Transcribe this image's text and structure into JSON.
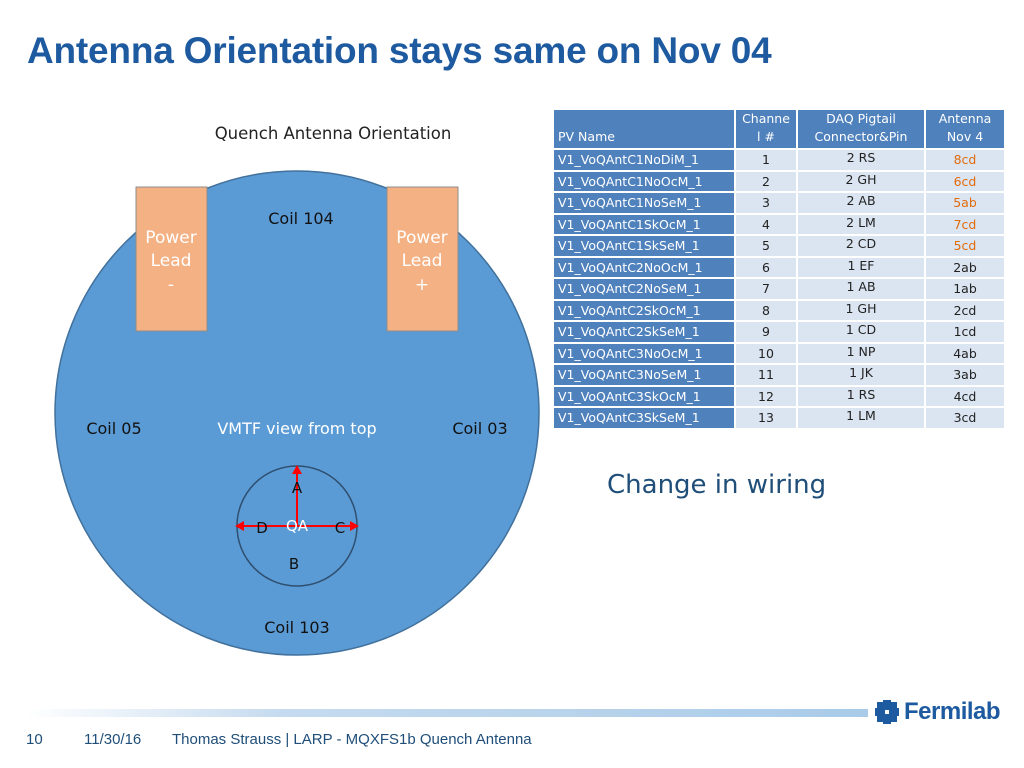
{
  "title": "Antenna Orientation stays same on Nov 04",
  "diagram": {
    "heading": "Quench Antenna Orientation",
    "coil_top": "Coil 104",
    "coil_left": "Coil 05",
    "coil_right": "Coil 03",
    "coil_bottom": "Coil 103",
    "view_label": "VMTF view from top",
    "lead_left": [
      "Power",
      "Lead",
      "-"
    ],
    "lead_right": [
      "Power",
      "Lead",
      "+"
    ],
    "qa": {
      "center": "QA",
      "a": "A",
      "b": "B",
      "c": "C",
      "d": "D"
    }
  },
  "table": {
    "headers": {
      "pv": "PV Name",
      "channel": [
        "Channe",
        "l #"
      ],
      "daq": [
        "DAQ Pigtail",
        "Connector&Pin"
      ],
      "antenna": [
        "Antenna",
        "Nov 4"
      ]
    },
    "rows": [
      {
        "pv": "V1_VoQAntC1NoDiM_1",
        "ch": "1",
        "daq": "2 RS",
        "ant": "8cd",
        "orange": true
      },
      {
        "pv": "V1_VoQAntC1NoOcM_1",
        "ch": "2",
        "daq": "2 GH",
        "ant": "6cd",
        "orange": true
      },
      {
        "pv": "V1_VoQAntC1NoSeM_1",
        "ch": "3",
        "daq": "2 AB",
        "ant": "5ab",
        "orange": true
      },
      {
        "pv": "V1_VoQAntC1SkOcM_1",
        "ch": "4",
        "daq": "2 LM",
        "ant": "7cd",
        "orange": true
      },
      {
        "pv": "V1_VoQAntC1SkSeM_1",
        "ch": "5",
        "daq": "2 CD",
        "ant": "5cd",
        "orange": true
      },
      {
        "pv": "V1_VoQAntC2NoOcM_1",
        "ch": "6",
        "daq": "1 EF",
        "ant": "2ab",
        "orange": false
      },
      {
        "pv": "V1_VoQAntC2NoSeM_1",
        "ch": "7",
        "daq": "1 AB",
        "ant": "1ab",
        "orange": false
      },
      {
        "pv": "V1_VoQAntC2SkOcM_1",
        "ch": "8",
        "daq": "1 GH",
        "ant": "2cd",
        "orange": false
      },
      {
        "pv": "V1_VoQAntC2SkSeM_1",
        "ch": "9",
        "daq": "1 CD",
        "ant": "1cd",
        "orange": false
      },
      {
        "pv": "V1_VoQAntC3NoOcM_1",
        "ch": "10",
        "daq": "1 NP",
        "ant": "4ab",
        "orange": false
      },
      {
        "pv": "V1_VoQAntC3NoSeM_1",
        "ch": "11",
        "daq": "1 JK",
        "ant": "3ab",
        "orange": false
      },
      {
        "pv": "V1_VoQAntC3SkOcM_1",
        "ch": "12",
        "daq": "1 RS",
        "ant": "4cd",
        "orange": false
      },
      {
        "pv": "V1_VoQAntC3SkSeM_1",
        "ch": "13",
        "daq": "1 LM",
        "ant": "3cd",
        "orange": false
      }
    ]
  },
  "change_note": "Change in wiring",
  "footer": {
    "page": "10",
    "date": "11/30/16",
    "author": "Thomas Strauss | LARP - MQXFS1b Quench Antenna",
    "logo": "Fermilab"
  },
  "colors": {
    "title": "#1e5aa0",
    "circle": "#5b9bd5",
    "lead": "#f4b183",
    "header": "#4f81bd",
    "cell": "#dbe5f1",
    "highlight": "#e26b0a"
  }
}
